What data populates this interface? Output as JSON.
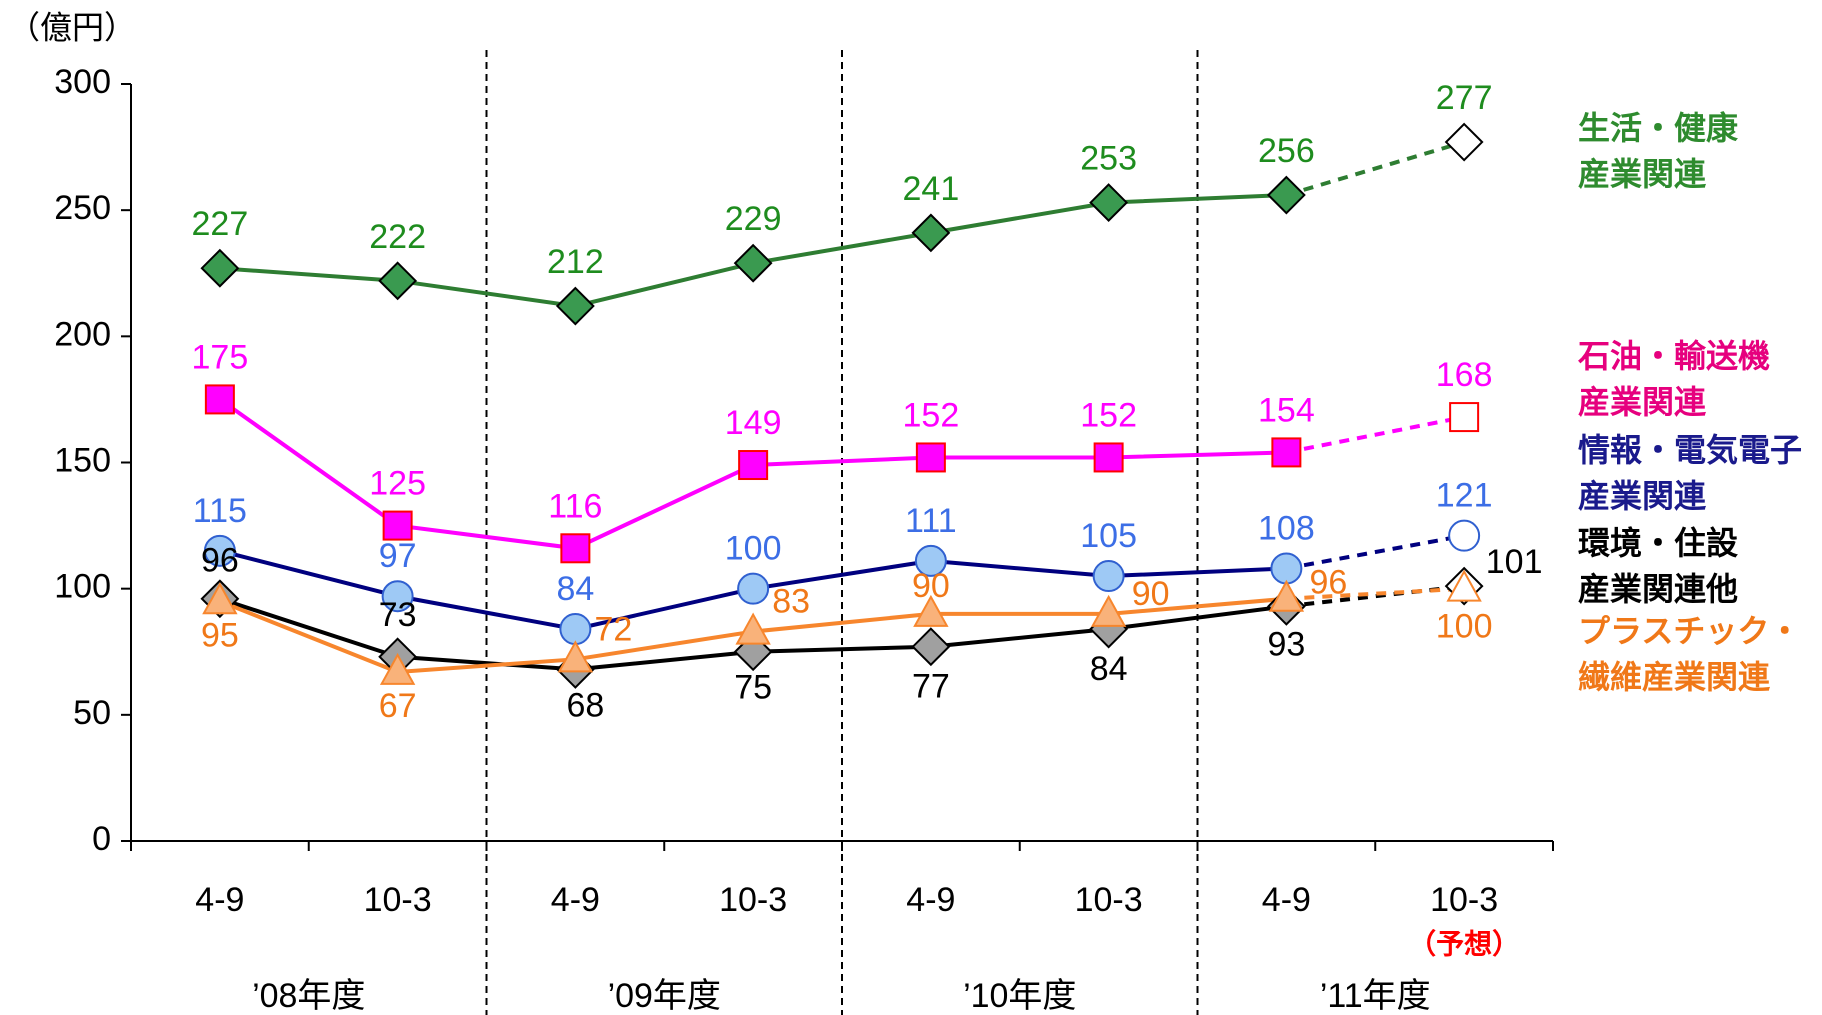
{
  "chart_data": {
    "type": "line",
    "unit_label": "（億円）",
    "categories": [
      "4-9",
      "10-3",
      "4-9",
      "10-3",
      "4-9",
      "10-3",
      "4-9",
      "10-3"
    ],
    "groups": [
      "’08年度",
      "’09年度",
      "’10年度",
      "’11年度"
    ],
    "forecast_note": "（予想）",
    "ylim": [
      0,
      300
    ],
    "yticks": [
      0,
      50,
      100,
      150,
      200,
      250,
      300
    ],
    "series": [
      {
        "name": "生活・健康\n産業関連",
        "color": "#2e7d32",
        "marker": "diamond",
        "marker_color": "#3a9a50",
        "label_color": "#1e8c1e",
        "legend_color": "#2e8b2e",
        "values": [
          227,
          222,
          212,
          229,
          241,
          253,
          256,
          277
        ]
      },
      {
        "name": "石油・輸送機\n産業関連",
        "color": "#ff00ff",
        "marker": "square",
        "marker_color": "#ff00ff",
        "label_color": "#ff00ff",
        "legend_color": "#e6007e",
        "values": [
          175,
          125,
          116,
          149,
          152,
          152,
          154,
          168
        ]
      },
      {
        "name": "情報・電気電子\n産業関連",
        "color": "#00007f",
        "marker": "circle",
        "marker_color": "#9ec9f5",
        "label_color": "#3c6ee6",
        "legend_color": "#1a1a8c",
        "values": [
          115,
          97,
          84,
          100,
          111,
          105,
          108,
          121
        ]
      },
      {
        "name": "環境・住設\n産業関連他",
        "color": "#000000",
        "marker": "diamond",
        "marker_color": "#a0a0a0",
        "label_color": "#000000",
        "legend_color": "#000000",
        "values": [
          96,
          73,
          68,
          75,
          77,
          84,
          93,
          101
        ]
      },
      {
        "name": "プラスチック・\n繊維産業関連",
        "color": "#f7862d",
        "marker": "triangle",
        "marker_color": "#f9b27a",
        "label_color": "#f07818",
        "legend_color": "#f07818",
        "values": [
          95,
          67,
          72,
          83,
          90,
          90,
          96,
          100
        ]
      }
    ]
  }
}
